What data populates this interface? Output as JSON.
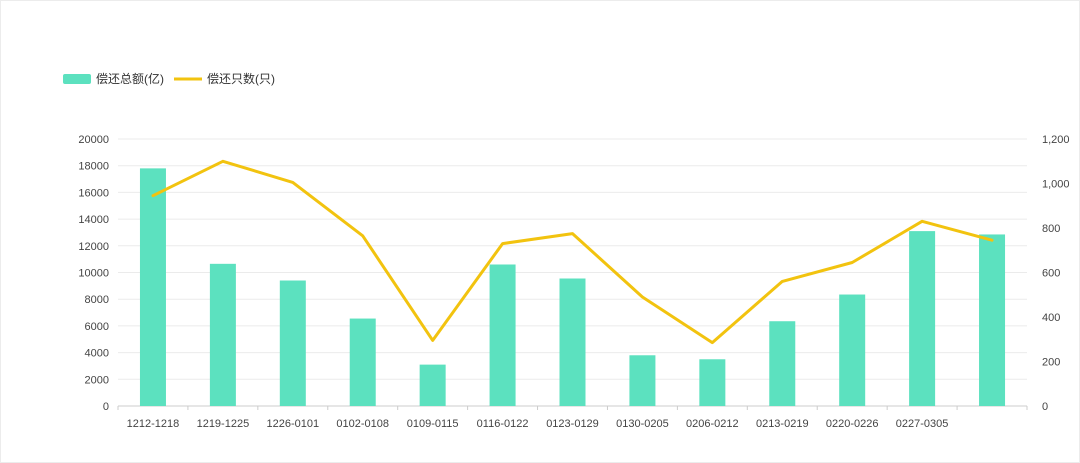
{
  "chart_data": {
    "type": "bar",
    "categories": [
      "1212-1218",
      "1219-1225",
      "1226-0101",
      "0102-0108",
      "0109-0115",
      "0116-0122",
      "0123-0129",
      "0130-0205",
      "0206-0212",
      "0213-0219",
      "0220-0226",
      "0227-0305",
      ""
    ],
    "series": [
      {
        "name": "偿还总额(亿)",
        "type": "bar",
        "axis": "left",
        "color": "#5ce1bf",
        "values": [
          17800,
          10650,
          9400,
          6550,
          3100,
          10600,
          9550,
          3800,
          3500,
          6350,
          8350,
          13100,
          12850
        ]
      },
      {
        "name": "偿还只数(只)",
        "type": "line",
        "axis": "right",
        "color": "#f2c30f",
        "values": [
          945,
          1100,
          1005,
          765,
          295,
          730,
          775,
          490,
          285,
          560,
          645,
          830,
          745
        ]
      }
    ],
    "y_left": {
      "min": 0,
      "max": 20000,
      "step": 2000
    },
    "y_right": {
      "min": 0,
      "max": 1200,
      "step": 200,
      "ticks": [
        "0",
        "200",
        "400",
        "600",
        "800",
        "1,000",
        "1,200"
      ]
    },
    "grid": true,
    "legend_position": "top-left"
  }
}
